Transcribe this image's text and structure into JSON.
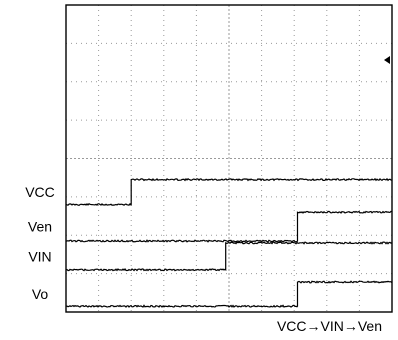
{
  "chart_data": {
    "type": "line",
    "caption": "VCC→VIN→Ven",
    "grid": true,
    "xlim": [
      0,
      10
    ],
    "divisions": {
      "x": 10,
      "y": 8
    },
    "series": [
      {
        "name": "VCC",
        "low_div": 2.8,
        "high_div": 3.45,
        "step_at_div": 2.0
      },
      {
        "name": "Ven",
        "low_div": 1.85,
        "high_div": 2.6,
        "step_at_div": 7.1
      },
      {
        "name": "VIN",
        "low_div": 1.1,
        "high_div": 1.8,
        "step_at_div": 4.9
      },
      {
        "name": "Vo",
        "low_div": 0.15,
        "high_div": 0.78,
        "step_at_div": 7.1
      }
    ]
  },
  "colors": {
    "trace": "#000000",
    "grid": "#9a9a9a",
    "frame": "#000000"
  },
  "icons": {
    "trigger_marker": "left-arrow-icon"
  }
}
